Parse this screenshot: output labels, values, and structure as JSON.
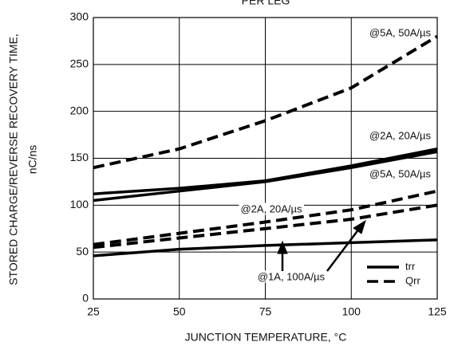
{
  "chart_data": {
    "type": "line",
    "title": "PER LEG",
    "y_label": "STORED CHARGE/REVERSE RECOVERY TIME,",
    "y_unit": "nC/ns",
    "x_label": "JUNCTION TEMPERATURE, °C",
    "x": [
      25,
      50,
      75,
      100,
      125
    ],
    "xlim": [
      25,
      125
    ],
    "xticks": [
      25,
      50,
      75,
      100,
      125
    ],
    "ylim": [
      0,
      300
    ],
    "yticks": [
      0,
      50,
      100,
      150,
      200,
      250,
      300
    ],
    "grid": true,
    "series": [
      {
        "name": "@5A, 50A/µs",
        "style": "dashed",
        "color": "#000000",
        "values": [
          140,
          160,
          190,
          225,
          280
        ]
      },
      {
        "name": "@2A, 20A/µs",
        "style": "solid",
        "color": "#000000",
        "values": [
          112,
          118,
          126,
          142,
          160
        ]
      },
      {
        "name": "@5A, 50A/µs",
        "style": "solid",
        "color": "#000000",
        "values": [
          105,
          115,
          125,
          140,
          157
        ]
      },
      {
        "name": "@2A, 20A/µs",
        "style": "dashed",
        "color": "#000000",
        "values": [
          58,
          70,
          82,
          95,
          115
        ]
      },
      {
        "name": "@1A, 100A/µs",
        "style": "dashed",
        "color": "#000000",
        "values": [
          55,
          65,
          75,
          85,
          100
        ]
      },
      {
        "name": "@1A, 100A/µs",
        "style": "solid",
        "color": "#000000",
        "values": [
          46,
          53,
          57,
          60,
          63
        ]
      }
    ],
    "legend": [
      {
        "label": "trr",
        "style": "solid"
      },
      {
        "label": "Qrr",
        "style": "dashed"
      }
    ],
    "legend_position": "lower right"
  }
}
